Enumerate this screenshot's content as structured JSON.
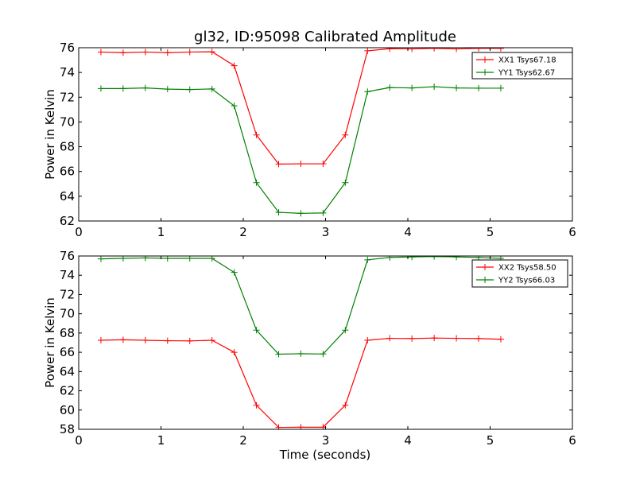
{
  "figure": {
    "title": "gl32, ID:95098 Calibrated Amplitude",
    "xlabel": "Time (seconds)",
    "background": "#ffffff"
  },
  "chart_data": [
    {
      "type": "line",
      "title": "gl32, ID:95098 Calibrated Amplitude",
      "xlabel": "",
      "ylabel": "Power in Kelvin",
      "xlim": [
        0,
        6
      ],
      "ylim": [
        62,
        76
      ],
      "xticks": [
        0,
        1,
        2,
        3,
        4,
        5,
        6
      ],
      "yticks": [
        62,
        64,
        66,
        68,
        70,
        72,
        74,
        76
      ],
      "grid": false,
      "legend_position": "top-right",
      "marker": "+",
      "x": [
        0.27,
        0.54,
        0.81,
        1.08,
        1.35,
        1.62,
        1.89,
        2.16,
        2.43,
        2.7,
        2.97,
        3.24,
        3.51,
        3.78,
        4.05,
        4.32,
        4.59,
        4.86,
        5.13
      ],
      "series": [
        {
          "name": "XX1 Tsys67.18",
          "color": "#ff0000",
          "values": [
            75.65,
            75.6,
            75.65,
            75.6,
            75.65,
            75.67,
            74.55,
            68.95,
            66.6,
            66.62,
            66.62,
            68.95,
            75.75,
            75.92,
            75.9,
            75.95,
            75.9,
            75.95,
            75.95
          ]
        },
        {
          "name": "YY1 Tsys62.67",
          "color": "#008000",
          "values": [
            72.7,
            72.7,
            72.75,
            72.65,
            72.62,
            72.67,
            71.3,
            65.1,
            62.7,
            62.62,
            62.65,
            65.1,
            72.45,
            72.78,
            72.75,
            72.85,
            72.75,
            72.73,
            72.73
          ]
        }
      ]
    },
    {
      "type": "line",
      "title": "",
      "xlabel": "Time (seconds)",
      "ylabel": "Power in Kelvin",
      "xlim": [
        0,
        6
      ],
      "ylim": [
        58,
        76
      ],
      "xticks": [
        0,
        1,
        2,
        3,
        4,
        5,
        6
      ],
      "yticks": [
        58,
        60,
        62,
        64,
        66,
        68,
        70,
        72,
        74,
        76
      ],
      "grid": false,
      "legend_position": "top-right",
      "marker": "+",
      "x": [
        0.27,
        0.54,
        0.81,
        1.08,
        1.35,
        1.62,
        1.89,
        2.16,
        2.43,
        2.7,
        2.97,
        3.24,
        3.51,
        3.78,
        4.05,
        4.32,
        4.59,
        4.86,
        5.13
      ],
      "series": [
        {
          "name": "XX2 Tsys58.50",
          "color": "#ff0000",
          "values": [
            67.25,
            67.3,
            67.25,
            67.2,
            67.18,
            67.25,
            66.0,
            60.5,
            58.2,
            58.22,
            58.22,
            60.5,
            67.25,
            67.45,
            67.42,
            67.48,
            67.45,
            67.42,
            67.35
          ]
        },
        {
          "name": "YY2 Tsys66.03",
          "color": "#008000",
          "values": [
            75.7,
            75.75,
            75.8,
            75.75,
            75.75,
            75.75,
            74.3,
            68.3,
            65.8,
            65.85,
            65.82,
            68.3,
            75.6,
            75.85,
            75.9,
            75.95,
            75.9,
            75.85,
            75.75
          ]
        }
      ]
    }
  ]
}
